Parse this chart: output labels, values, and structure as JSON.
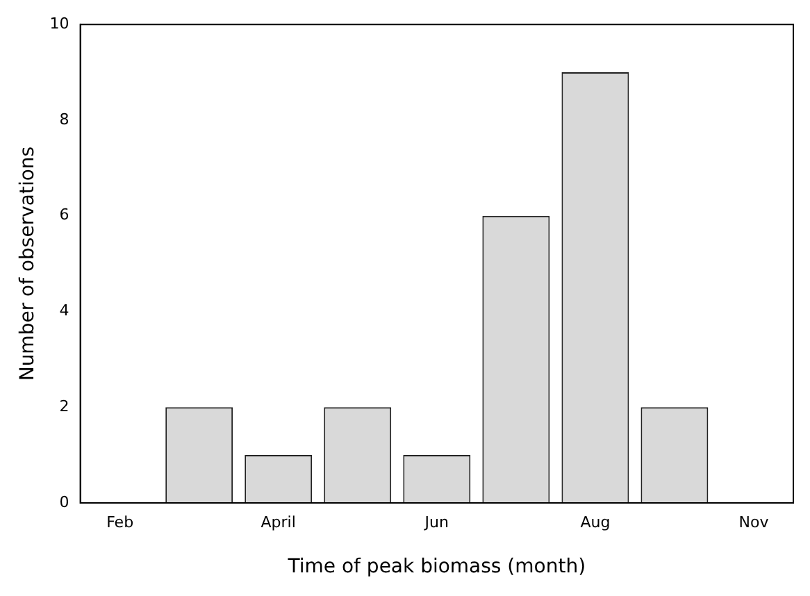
{
  "chart_data": {
    "type": "bar",
    "xlabel": "Time of peak biomass (month)",
    "ylabel": "Number of observations",
    "categories": [
      "Feb",
      null,
      "April",
      null,
      "Jun",
      null,
      "Aug",
      null,
      "Nov"
    ],
    "values": [
      null,
      2,
      1,
      2,
      1,
      6,
      9,
      2,
      null
    ],
    "color": "#d9d9d9",
    "ylim": [
      0,
      10
    ],
    "yticks": [
      0,
      2,
      4,
      6,
      8,
      10
    ],
    "grid": false,
    "legend": false
  }
}
